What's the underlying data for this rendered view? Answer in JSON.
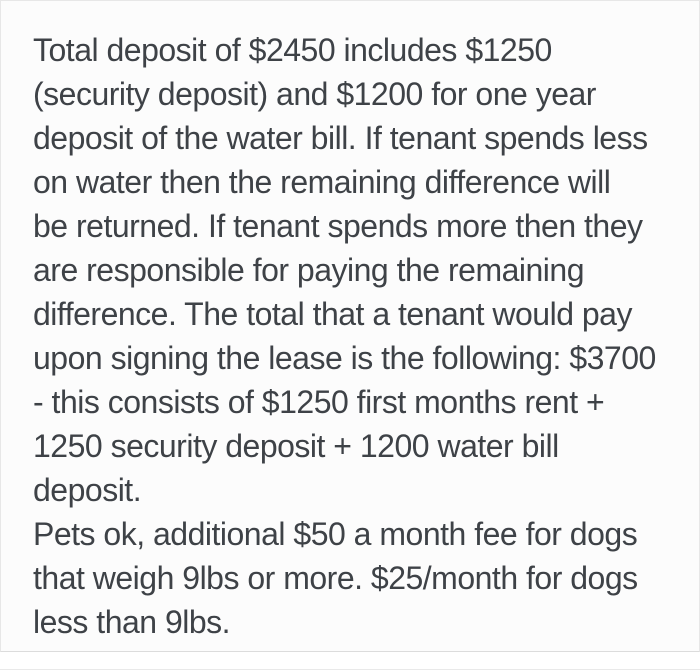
{
  "page": {
    "background_color": "#ffffff",
    "card_background_color": "#fcfcfc",
    "border_color": "#e7e7e7",
    "divider_color": "#dcdcdc",
    "text_color": "#3e4247"
  },
  "listing_text": {
    "lines": [
      "Total deposit of $2450 includes $1250",
      "(security deposit) and $1200 for one year",
      "deposit of the water bill. If tenant spends less",
      "on water then the remaining difference will",
      "be returned. If tenant spends more then they",
      "are responsible for paying the remaining",
      "difference. The total that a tenant would pay",
      "upon signing the lease is the following: $3700",
      "- this consists of $1250 first months rent +",
      "1250 security deposit + 1200 water bill",
      "deposit.",
      "Pets ok, additional $50 a month fee for dogs",
      "that weigh 9lbs or more. $25/month for dogs",
      "less than 9lbs."
    ]
  }
}
